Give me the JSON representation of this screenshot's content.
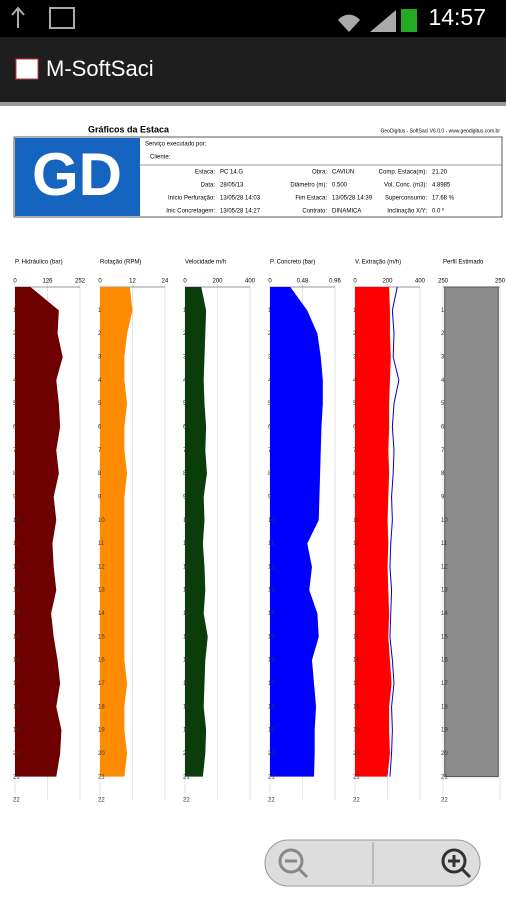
{
  "status_bar": {
    "time": "14:57"
  },
  "app": {
    "title": "M-SoftSaci"
  },
  "report": {
    "title": "Gráficos da Estaca",
    "software": "GeoDigitus - SoftSaci V6.0.0 - www.geodigitus.com.br",
    "logo": "GD",
    "service_label": "Serviço executado por:",
    "client_label": "Cliente:",
    "fields": [
      {
        "label": "Estaca:",
        "value": "PC 14.G"
      },
      {
        "label": "Data:",
        "value": "28/05/13"
      },
      {
        "label": "Início Perfuração:",
        "value": "13/05/28 14:03"
      },
      {
        "label": "Inic Concretagem:",
        "value": "13/05/28 14:27"
      },
      {
        "label": "Obra:",
        "value": "CAVIUN"
      },
      {
        "label": "Diâmetro (m):",
        "value": "0.500"
      },
      {
        "label": "Fim Estaca:",
        "value": "13/05/28 14:39"
      },
      {
        "label": "Contrato:",
        "value": "DINAMICA"
      },
      {
        "label": "Comp. Estaca(m):",
        "value": "21.20"
      },
      {
        "label": "Vol. Conc. (m3):",
        "value": "4.8985"
      },
      {
        "label": "Superconsumo:",
        "value": "17.68 %"
      },
      {
        "label": "Inclinação X/Y:",
        "value": "0.0 º"
      }
    ]
  },
  "chart_data": [
    {
      "type": "profile",
      "title": "P. Hidráulico (bar)",
      "xlim": [
        0,
        252
      ],
      "xticks": [
        0,
        126,
        252
      ],
      "ylim": [
        0,
        22
      ],
      "yticks": [
        1,
        2,
        3,
        4,
        5,
        6,
        7,
        8,
        9,
        10,
        11,
        12,
        13,
        14,
        15,
        16,
        17,
        18,
        19,
        20,
        21,
        22
      ],
      "y": [
        0,
        1,
        2,
        3,
        4,
        5,
        6,
        7,
        8,
        9,
        10,
        11,
        12,
        13,
        14,
        15,
        16,
        17,
        18,
        19,
        20,
        21
      ],
      "series": [
        {
          "kind": "fill",
          "color": "#6e0000",
          "values": [
            60,
            170,
            165,
            185,
            160,
            170,
            175,
            160,
            170,
            150,
            160,
            145,
            150,
            160,
            140,
            150,
            165,
            175,
            160,
            180,
            175,
            160
          ]
        }
      ]
    },
    {
      "type": "profile",
      "title": "Rotação (RPM)",
      "xlim": [
        0,
        24
      ],
      "xticks": [
        0,
        12,
        24
      ],
      "ylim": [
        0,
        22
      ],
      "yticks": [
        1,
        2,
        3,
        4,
        5,
        6,
        7,
        8,
        9,
        10,
        11,
        12,
        13,
        14,
        15,
        16,
        17,
        18,
        19,
        20,
        21,
        22
      ],
      "y": [
        0,
        1,
        2,
        3,
        4,
        5,
        6,
        7,
        8,
        9,
        10,
        11,
        12,
        13,
        14,
        15,
        16,
        17,
        18,
        19,
        20,
        21
      ],
      "series": [
        {
          "kind": "fill",
          "color": "#ff8c00",
          "values": [
            11,
            12,
            10,
            9,
            9,
            10,
            9,
            9,
            10,
            9,
            9,
            9,
            9,
            9,
            9,
            9,
            9,
            10,
            9,
            9,
            10,
            9
          ]
        }
      ]
    },
    {
      "type": "profile",
      "title": "Velocidade m/h",
      "xlim": [
        0,
        400
      ],
      "xticks": [
        0,
        200,
        400
      ],
      "ylim": [
        0,
        22
      ],
      "yticks": [
        1,
        2,
        3,
        4,
        5,
        6,
        7,
        8,
        9,
        10,
        11,
        12,
        13,
        14,
        15,
        16,
        17,
        18,
        19,
        20,
        21,
        22
      ],
      "y": [
        0,
        1,
        2,
        3,
        4,
        5,
        6,
        7,
        8,
        9,
        10,
        11,
        12,
        13,
        14,
        15,
        16,
        17,
        18,
        19,
        20,
        21
      ],
      "series": [
        {
          "kind": "fill",
          "color": "#0b3d0b",
          "values": [
            100,
            130,
            125,
            120,
            115,
            120,
            130,
            125,
            135,
            115,
            120,
            110,
            120,
            125,
            115,
            140,
            125,
            120,
            115,
            130,
            125,
            110
          ]
        }
      ]
    },
    {
      "type": "profile",
      "title": "P. Concreto (bar)",
      "xlim": [
        0,
        0.96
      ],
      "xticks": [
        0,
        0.48,
        0.96
      ],
      "ylim": [
        0,
        22
      ],
      "yticks": [
        1,
        2,
        3,
        4,
        5,
        6,
        7,
        8,
        9,
        10,
        11,
        12,
        13,
        14,
        15,
        16,
        17,
        18,
        19,
        20,
        21,
        22
      ],
      "y": [
        0,
        1,
        2,
        3,
        4,
        5,
        6,
        7,
        8,
        9,
        10,
        11,
        12,
        13,
        14,
        15,
        16,
        17,
        18,
        19,
        20,
        21
      ],
      "series": [
        {
          "kind": "fill",
          "color": "#0000ff",
          "values": [
            0.3,
            0.55,
            0.7,
            0.75,
            0.78,
            0.78,
            0.76,
            0.75,
            0.74,
            0.73,
            0.72,
            0.55,
            0.62,
            0.58,
            0.7,
            0.72,
            0.62,
            0.65,
            0.68,
            0.66,
            0.66,
            0.65
          ]
        }
      ]
    },
    {
      "type": "profile",
      "title": "V. Extração (m/h)",
      "xlim": [
        0,
        400
      ],
      "xticks": [
        0,
        200,
        400
      ],
      "ylim": [
        0,
        22
      ],
      "yticks": [
        1,
        2,
        3,
        4,
        5,
        6,
        7,
        8,
        9,
        10,
        11,
        12,
        13,
        14,
        15,
        16,
        17,
        18,
        19,
        20,
        21,
        22
      ],
      "y": [
        0,
        1,
        2,
        3,
        4,
        5,
        6,
        7,
        8,
        9,
        10,
        11,
        12,
        13,
        14,
        15,
        16,
        17,
        18,
        19,
        20,
        21
      ],
      "series": [
        {
          "kind": "fill",
          "color": "#ff0000",
          "values": [
            210,
            215,
            215,
            220,
            215,
            210,
            210,
            205,
            210,
            205,
            200,
            205,
            200,
            205,
            210,
            205,
            215,
            225,
            210,
            210,
            215,
            200
          ]
        },
        {
          "kind": "line",
          "color": "#0000cc",
          "values": [
            260,
            230,
            240,
            235,
            270,
            240,
            230,
            240,
            235,
            225,
            230,
            220,
            215,
            225,
            220,
            215,
            230,
            240,
            225,
            230,
            225,
            215
          ]
        }
      ]
    },
    {
      "type": "profile",
      "title": "Perfil Estimado",
      "xlim": [
        -250,
        250
      ],
      "xticks": [
        {
          "value": -250,
          "label": "250"
        },
        {
          "value": 250,
          "label": "250"
        }
      ],
      "ylim": [
        0,
        22
      ],
      "yticks": [
        1,
        2,
        3,
        4,
        5,
        6,
        7,
        8,
        9,
        10,
        11,
        12,
        13,
        14,
        15,
        16,
        17,
        18,
        19,
        20,
        21,
        22
      ],
      "y": [
        0,
        1,
        2,
        3,
        4,
        5,
        6,
        7,
        8,
        9,
        10,
        11,
        12,
        13,
        14,
        15,
        16,
        17,
        18,
        19,
        20,
        21
      ],
      "series": [
        {
          "kind": "mirror",
          "color": "#8c8c8c",
          "values": [
            235,
            235,
            235,
            235,
            235,
            235,
            235,
            235,
            235,
            235,
            235,
            235,
            235,
            235,
            235,
            235,
            235,
            235,
            235,
            235,
            235,
            235
          ]
        }
      ]
    }
  ]
}
